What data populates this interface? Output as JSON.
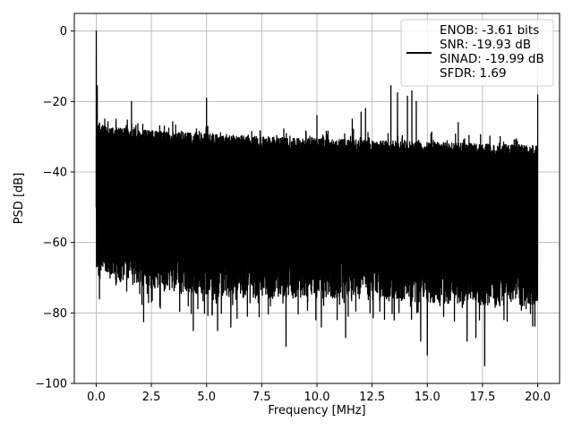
{
  "chart_data": {
    "type": "line",
    "title": "",
    "xlabel": "Frequency [MHz]",
    "ylabel": "PSD [dB]",
    "xlim": [
      -0.99,
      20.99
    ],
    "ylim": [
      -100,
      5
    ],
    "xticks": [
      "0.0",
      "2.5",
      "5.0",
      "7.5",
      "10.0",
      "12.5",
      "15.0",
      "17.5",
      "20.0"
    ],
    "xtick_values": [
      0,
      2.5,
      5,
      7.5,
      10,
      12.5,
      15,
      17.5,
      20
    ],
    "yticks": [
      "0",
      "−20",
      "−40",
      "−60",
      "−80",
      "−100"
    ],
    "ytick_values": [
      0,
      -20,
      -40,
      -60,
      -80,
      -100
    ],
    "grid": true,
    "legend": {
      "placement": "top-right",
      "lines": [
        "ENOB: -3.61 bits",
        "SNR: -19.93 dB",
        "SINAD: -19.99 dB",
        "SFDR: 1.69"
      ]
    },
    "series": [
      {
        "color": "#000000",
        "x_range": [
          0,
          20
        ],
        "noise_floor_top": [
          [
            0,
            -25
          ],
          [
            1,
            -26
          ],
          [
            3,
            -27
          ],
          [
            5,
            -27.5
          ],
          [
            7.5,
            -28.5
          ],
          [
            10,
            -29
          ],
          [
            12.5,
            -29.5
          ],
          [
            15,
            -30
          ],
          [
            17.5,
            -30.5
          ],
          [
            20,
            -31
          ]
        ],
        "noise_floor_bottom": [
          [
            0,
            -66
          ],
          [
            2.5,
            -69
          ],
          [
            5,
            -71
          ],
          [
            7.5,
            -72
          ],
          [
            10,
            -72
          ],
          [
            12.5,
            -72
          ],
          [
            15,
            -73
          ],
          [
            17.5,
            -74
          ],
          [
            20,
            -74
          ]
        ],
        "peaks": [
          {
            "x": 0.0,
            "y": 0.0
          },
          {
            "x": 0.05,
            "y": -15.5
          },
          {
            "x": 1.6,
            "y": -20.0
          },
          {
            "x": 5.0,
            "y": -19.0
          },
          {
            "x": 10.0,
            "y": -24.0
          },
          {
            "x": 11.6,
            "y": -25.0
          },
          {
            "x": 12.0,
            "y": -23.0
          },
          {
            "x": 12.2,
            "y": -22.0
          },
          {
            "x": 13.35,
            "y": -15.5
          },
          {
            "x": 13.5,
            "y": -16.5
          },
          {
            "x": 13.65,
            "y": -17.5
          },
          {
            "x": 14.1,
            "y": -18.5
          },
          {
            "x": 14.3,
            "y": -17.0
          },
          {
            "x": 14.5,
            "y": -20.0
          },
          {
            "x": 16.4,
            "y": -26.0
          },
          {
            "x": 20.0,
            "y": -18.0
          }
        ],
        "dips": [
          {
            "x": 0.15,
            "y": -76
          },
          {
            "x": 2.15,
            "y": -82.5
          },
          {
            "x": 4.4,
            "y": -85
          },
          {
            "x": 5.5,
            "y": -85
          },
          {
            "x": 6.1,
            "y": -84
          },
          {
            "x": 8.6,
            "y": -89.5
          },
          {
            "x": 10.2,
            "y": -84
          },
          {
            "x": 11.3,
            "y": -87
          },
          {
            "x": 13.5,
            "y": -82
          },
          {
            "x": 14.7,
            "y": -88
          },
          {
            "x": 15.0,
            "y": -92
          },
          {
            "x": 16.8,
            "y": -88
          },
          {
            "x": 17.2,
            "y": -87
          },
          {
            "x": 17.6,
            "y": -95
          }
        ]
      }
    ]
  }
}
